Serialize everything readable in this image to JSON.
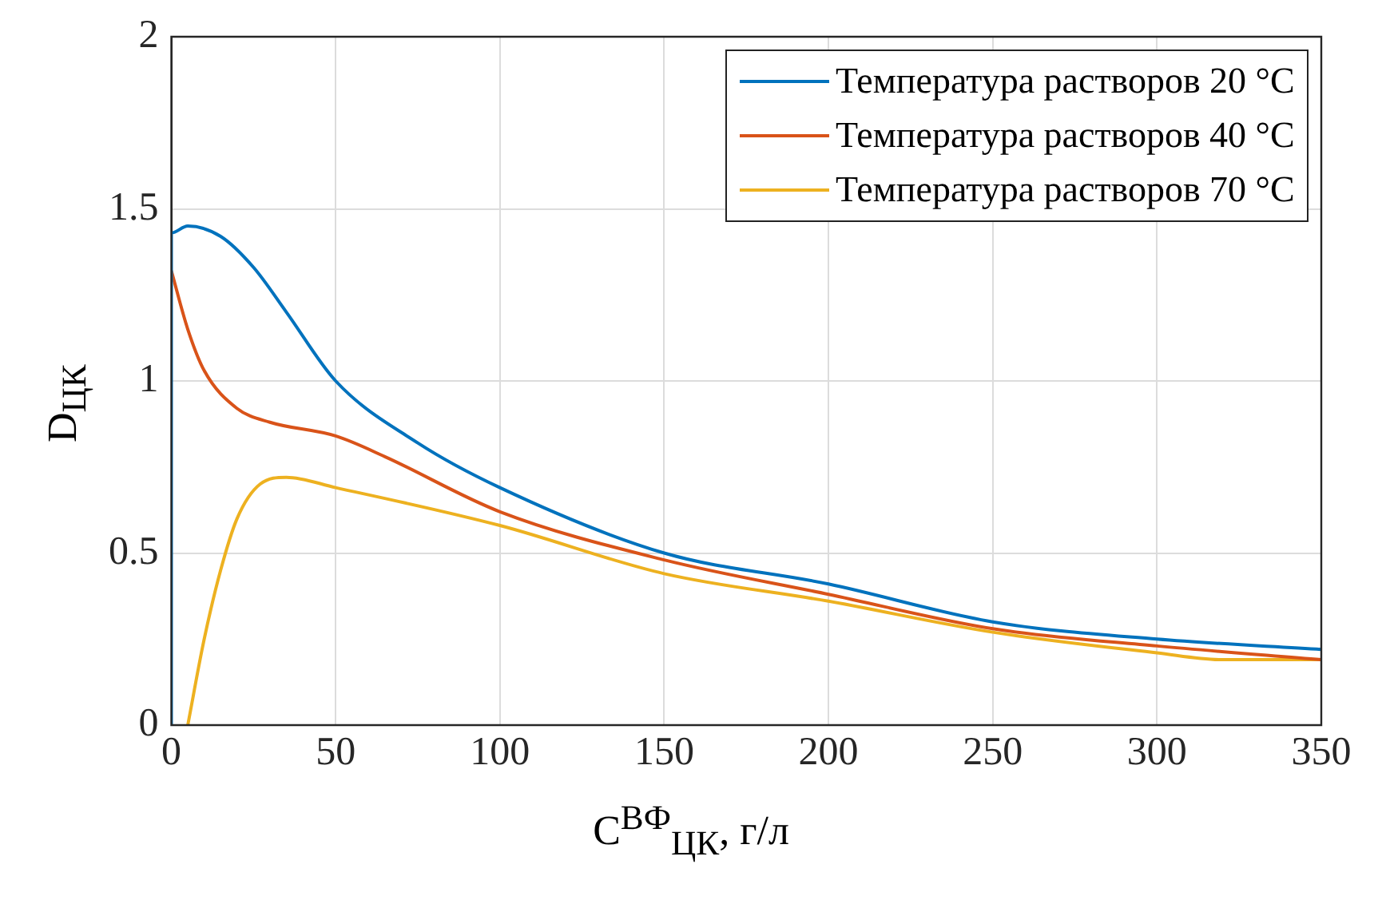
{
  "chart_data": {
    "type": "line",
    "xlabel": "C$^{ВФ}$$_{ЦК}$, г/л",
    "ylabel": "D$_{ЦК}$",
    "xlim": [
      0,
      350
    ],
    "ylim": [
      0,
      2
    ],
    "xticks": [
      0,
      50,
      100,
      150,
      200,
      250,
      300,
      350
    ],
    "yticks": [
      0,
      0.5,
      1,
      1.5,
      2
    ],
    "grid": true,
    "legend": "top right",
    "marker": "none",
    "line_style": "solid",
    "series": [
      {
        "name": "Температура растворов 20 °C",
        "color": "#0072bd",
        "x": [
          0,
          0,
          5,
          15,
          25,
          35,
          50,
          75,
          100,
          150,
          200,
          250,
          300,
          350
        ],
        "values": [
          0,
          1.43,
          1.45,
          1.42,
          1.33,
          1.2,
          1.0,
          0.82,
          0.69,
          0.5,
          0.41,
          0.3,
          0.25,
          0.22
        ]
      },
      {
        "name": "Температура растворов 40 °C",
        "color": "#d95319",
        "x": [
          0,
          5,
          10,
          20,
          30,
          50,
          65,
          100,
          150,
          200,
          250,
          300,
          350
        ],
        "values": [
          1.32,
          1.15,
          1.03,
          0.92,
          0.88,
          0.84,
          0.78,
          0.62,
          0.48,
          0.38,
          0.28,
          0.23,
          0.19
        ]
      },
      {
        "name": "Температура растворов 70 °C",
        "color": "#edb120",
        "x": [
          5,
          10,
          15,
          20,
          27,
          35,
          50,
          100,
          150,
          200,
          250,
          300,
          320,
          350
        ],
        "values": [
          0,
          0.25,
          0.45,
          0.6,
          0.7,
          0.72,
          0.69,
          0.58,
          0.44,
          0.36,
          0.27,
          0.21,
          0.19,
          0.19
        ]
      }
    ]
  }
}
